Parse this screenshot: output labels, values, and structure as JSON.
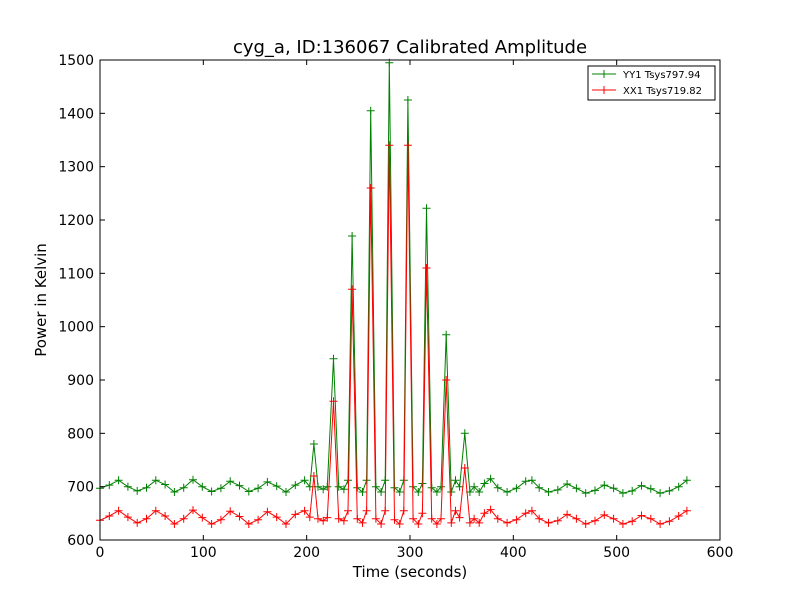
{
  "chart_data": {
    "type": "line",
    "title": "cyg_a, ID:136067 Calibrated Amplitude",
    "xlabel": "Time (seconds)",
    "ylabel": "Power in Kelvin",
    "xlim": [
      0,
      600
    ],
    "ylim": [
      600,
      1500
    ],
    "xticks": [
      0,
      100,
      200,
      300,
      400,
      500,
      600
    ],
    "yticks": [
      600,
      700,
      800,
      900,
      1000,
      1100,
      1200,
      1300,
      1400,
      1500
    ],
    "grid": false,
    "legend_position": "top-right",
    "marker": "+",
    "series": [
      {
        "name": "YY1 Tsys797.94",
        "color": "#008000",
        "x": [
          0,
          9,
          18,
          27,
          36,
          45,
          54,
          63,
          72,
          81,
          90,
          99,
          108,
          117,
          126,
          135,
          144,
          153,
          162,
          171,
          180,
          189,
          198,
          203,
          207,
          211,
          216,
          220,
          226,
          231,
          236,
          240,
          244,
          249,
          254,
          258,
          262,
          267,
          272,
          276,
          280,
          285,
          290,
          294,
          298,
          303,
          308,
          312,
          316,
          321,
          326,
          330,
          335,
          340,
          344,
          348,
          353,
          358,
          362,
          367,
          372,
          378,
          385,
          394,
          403,
          412,
          418,
          425,
          434,
          443,
          452,
          461,
          470,
          479,
          488,
          497,
          506,
          515,
          524,
          533,
          542,
          551,
          560,
          568
        ],
        "values": [
          697,
          703,
          712,
          700,
          692,
          698,
          712,
          704,
          690,
          698,
          713,
          700,
          691,
          697,
          710,
          702,
          691,
          697,
          709,
          701,
          690,
          703,
          712,
          700,
          780,
          700,
          695,
          700,
          940,
          700,
          695,
          712,
          1170,
          698,
          690,
          712,
          1405,
          700,
          690,
          712,
          1495,
          698,
          690,
          712,
          1425,
          700,
          690,
          706,
          1222,
          698,
          690,
          700,
          985,
          690,
          712,
          700,
          800,
          690,
          700,
          690,
          706,
          715,
          698,
          690,
          697,
          710,
          712,
          698,
          690,
          694,
          705,
          697,
          688,
          693,
          703,
          697,
          688,
          692,
          702,
          696,
          688,
          692,
          700,
          712
        ]
      },
      {
        "name": "XX1 Tsys719.82",
        "color": "#ff0000",
        "x": [
          0,
          9,
          18,
          27,
          36,
          45,
          54,
          63,
          72,
          81,
          90,
          99,
          108,
          117,
          126,
          135,
          144,
          153,
          162,
          171,
          180,
          189,
          198,
          203,
          207,
          211,
          216,
          220,
          226,
          231,
          236,
          240,
          244,
          249,
          254,
          258,
          262,
          267,
          272,
          276,
          280,
          285,
          290,
          294,
          298,
          303,
          308,
          312,
          316,
          321,
          326,
          330,
          335,
          340,
          344,
          348,
          353,
          358,
          362,
          367,
          372,
          378,
          385,
          394,
          403,
          412,
          418,
          425,
          434,
          443,
          452,
          461,
          470,
          479,
          488,
          497,
          506,
          515,
          524,
          533,
          542,
          551,
          560,
          568
        ],
        "values": [
          637,
          645,
          655,
          643,
          632,
          640,
          655,
          645,
          630,
          640,
          656,
          642,
          630,
          638,
          654,
          644,
          630,
          638,
          653,
          643,
          630,
          648,
          655,
          643,
          720,
          640,
          636,
          642,
          860,
          640,
          636,
          655,
          1070,
          640,
          632,
          655,
          1260,
          640,
          630,
          655,
          1340,
          638,
          630,
          655,
          1340,
          640,
          630,
          650,
          1110,
          640,
          630,
          640,
          900,
          632,
          655,
          642,
          735,
          632,
          640,
          632,
          650,
          657,
          640,
          632,
          638,
          650,
          655,
          640,
          632,
          636,
          648,
          640,
          630,
          636,
          647,
          640,
          630,
          635,
          646,
          640,
          630,
          635,
          645,
          655
        ]
      }
    ]
  }
}
